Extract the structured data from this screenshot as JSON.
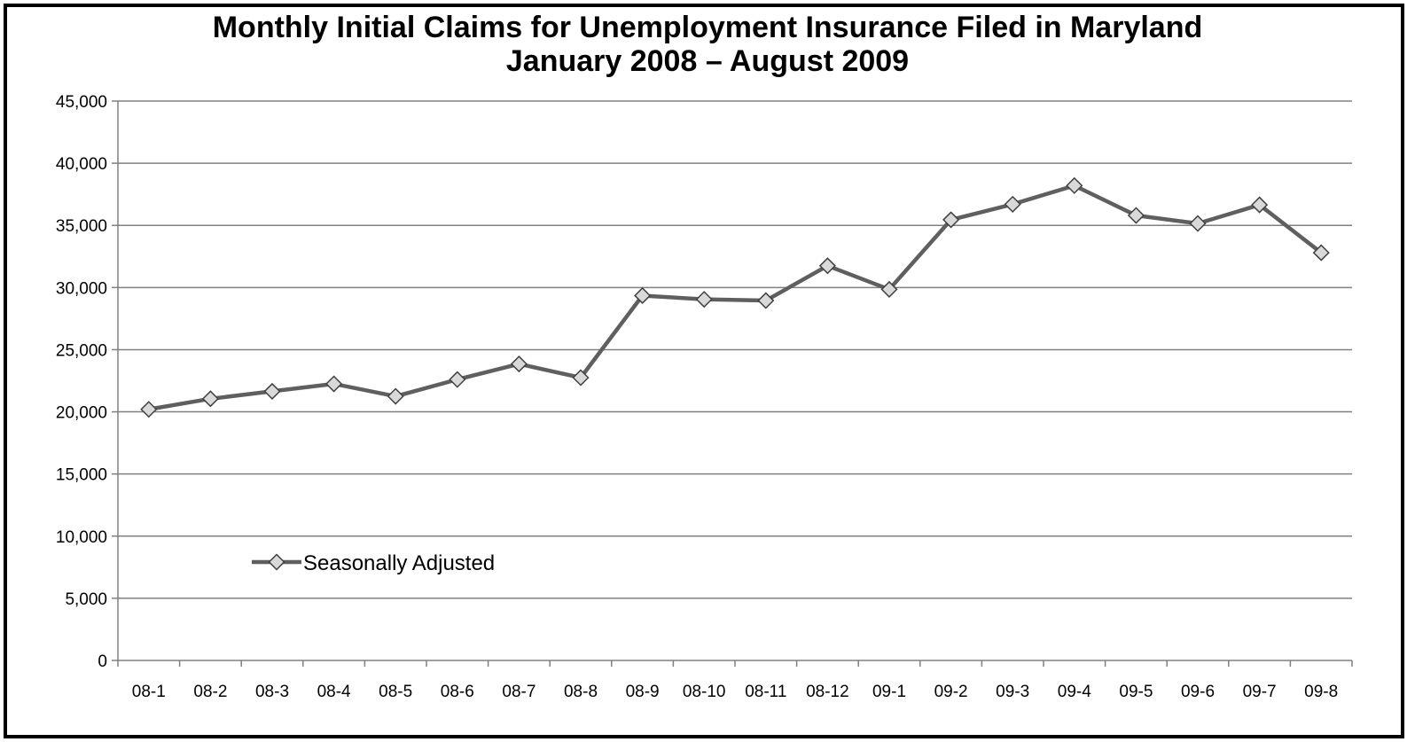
{
  "chart_data": {
    "type": "line",
    "title": "Monthly Initial Claims for Unemployment Insurance Filed in Maryland",
    "subtitle": "January 2008 – August 2009",
    "xlabel": "",
    "ylabel": "",
    "categories": [
      "08-1",
      "08-2",
      "08-3",
      "08-4",
      "08-5",
      "08-6",
      "08-7",
      "08-8",
      "08-9",
      "08-10",
      "08-11",
      "08-12",
      "09-1",
      "09-2",
      "09-3",
      "09-4",
      "09-5",
      "09-6",
      "09-7",
      "09-8"
    ],
    "series": [
      {
        "name": "Seasonally Adjusted",
        "values": [
          20200,
          21050,
          21650,
          22250,
          21250,
          22600,
          23850,
          22750,
          29350,
          29050,
          28950,
          31750,
          29850,
          35450,
          36700,
          38200,
          35800,
          35150,
          36650,
          32800
        ]
      }
    ],
    "ylim": [
      0,
      45000
    ],
    "yticks": [
      0,
      5000,
      10000,
      15000,
      20000,
      25000,
      30000,
      35000,
      40000,
      45000
    ],
    "ytick_labels": [
      "0",
      "5,000",
      "10,000",
      "15,000",
      "20,000",
      "25,000",
      "30,000",
      "35,000",
      "40,000",
      "45,000"
    ],
    "grid": true,
    "legend_position": "bottom-left",
    "colors": {
      "line": "#5f5f5f",
      "marker_fill": "#d9d9d9",
      "marker_stroke": "#404040",
      "grid": "#808080"
    }
  }
}
